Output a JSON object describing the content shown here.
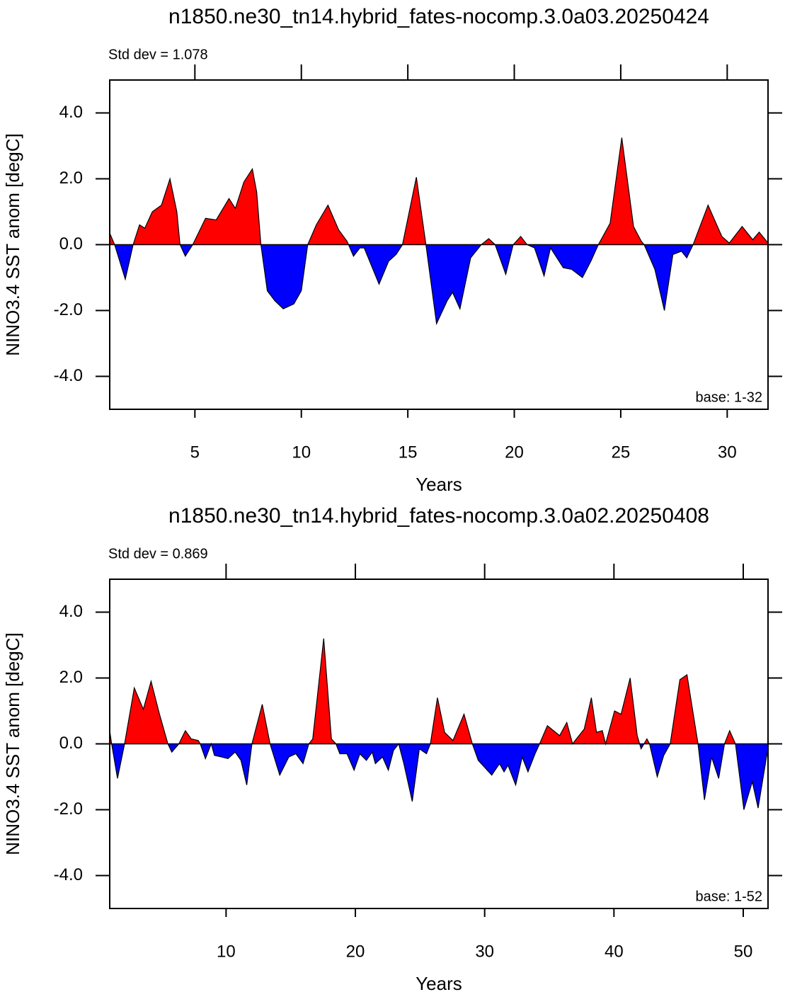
{
  "chart_data": [
    {
      "type": "area",
      "title": "n1850.ne30_tn14.hybrid_fates-nocomp.3.0a03.20250424",
      "subtitle": "Std dev = 1.078",
      "annotation": "base: 1-32",
      "xlabel": "Years",
      "ylabel": "NINO3.4 SST anom [degC]",
      "x": [
        1.0,
        1.23,
        1.73,
        2.1,
        2.4,
        2.65,
        3.0,
        3.43,
        3.83,
        4.15,
        4.3,
        4.55,
        4.9,
        5.5,
        6.0,
        6.6,
        6.9,
        7.3,
        7.7,
        7.9,
        8.1,
        8.4,
        8.75,
        9.15,
        9.65,
        10.0,
        10.3,
        10.7,
        11.25,
        11.75,
        12.15,
        12.45,
        12.75,
        12.95,
        13.65,
        14.1,
        14.45,
        14.75,
        15.4,
        15.85,
        16.35,
        16.85,
        17.1,
        17.45,
        17.95,
        18.45,
        18.8,
        19.1,
        19.6,
        19.95,
        20.3,
        20.6,
        20.95,
        21.4,
        21.7,
        22.3,
        22.7,
        23.2,
        23.6,
        23.95,
        24.5,
        25.05,
        25.6,
        25.97,
        26.1,
        26.6,
        27.05,
        27.45,
        27.85,
        28.1,
        28.4,
        29.1,
        29.75,
        30.1,
        30.7,
        31.2,
        31.5,
        31.92
      ],
      "values": [
        0.35,
        0,
        -1.05,
        0,
        0.6,
        0.5,
        1.0,
        1.2,
        2.0,
        1.0,
        0,
        -0.35,
        0,
        0.8,
        0.75,
        1.4,
        1.1,
        1.9,
        2.3,
        1.6,
        0,
        -1.4,
        -1.7,
        -1.95,
        -1.8,
        -1.4,
        0,
        0.6,
        1.2,
        0.45,
        0.1,
        -0.35,
        -0.1,
        -0.1,
        -1.2,
        -0.5,
        -0.3,
        0,
        2.05,
        0,
        -2.4,
        -1.7,
        -1.45,
        -1.95,
        -0.4,
        0,
        0.18,
        0,
        -0.9,
        0,
        0.25,
        0,
        -0.1,
        -0.95,
        -0.1,
        -0.7,
        -0.75,
        -1.0,
        -0.5,
        0,
        0.65,
        3.25,
        0.55,
        0.1,
        0,
        -0.75,
        -2.0,
        -0.3,
        -0.2,
        -0.4,
        0,
        1.2,
        0.25,
        0.05,
        0.55,
        0.15,
        0.38,
        0.05
      ],
      "xlim": [
        1,
        31.917
      ],
      "ylim": [
        -5,
        5
      ],
      "xticks": [
        5,
        10,
        15,
        20,
        25,
        30
      ],
      "yticks": [
        {
          "value": -4,
          "label": "-4.0"
        },
        {
          "value": -2,
          "label": "-2.0"
        },
        {
          "value": 0,
          "label": "0.0"
        },
        {
          "value": 2,
          "label": "2.0"
        },
        {
          "value": 4,
          "label": "4.0"
        }
      ],
      "positive_color": "#ff0000",
      "negative_color": "#0000ff"
    },
    {
      "type": "area",
      "title": "n1850.ne30_tn14.hybrid_fates-nocomp.3.0a02.20250408",
      "subtitle": "Std dev = 0.869",
      "annotation": "base: 1-52",
      "xlabel": "Years",
      "ylabel": "NINO3.4 SST anom [degC]",
      "x": [
        1.0,
        1.15,
        1.6,
        2.15,
        2.9,
        3.6,
        4.2,
        4.85,
        5.5,
        5.8,
        6.35,
        6.85,
        7.3,
        7.85,
        8.0,
        8.4,
        8.85,
        9.1,
        9.65,
        10.15,
        10.7,
        11.15,
        11.6,
        12.0,
        12.8,
        13.4,
        14.15,
        14.85,
        15.4,
        15.95,
        16.4,
        16.7,
        17.55,
        18.15,
        18.5,
        18.8,
        19.35,
        19.9,
        20.35,
        20.85,
        21.3,
        21.55,
        22.1,
        22.55,
        22.95,
        23.35,
        23.75,
        24.4,
        24.95,
        25.5,
        25.8,
        26.35,
        26.9,
        27.55,
        28.4,
        29.05,
        29.5,
        30.55,
        31.15,
        31.5,
        31.8,
        32.4,
        32.9,
        33.35,
        33.9,
        34.25,
        34.85,
        35.8,
        36.35,
        36.8,
        37.0,
        37.7,
        38.25,
        38.65,
        39.1,
        39.35,
        40.05,
        40.55,
        41.25,
        41.8,
        42.1,
        42.55,
        42.75,
        43.35,
        43.85,
        44.35,
        45.1,
        45.65,
        46.5,
        47.0,
        47.55,
        48.1,
        48.55,
        48.95,
        49.4,
        50.05,
        50.7,
        51.15,
        51.92
      ],
      "values": [
        0.4,
        0,
        -1.05,
        0,
        1.7,
        1.05,
        1.9,
        0.9,
        0,
        -0.25,
        0,
        0.4,
        0.15,
        0.1,
        0,
        -0.45,
        0,
        -0.35,
        -0.4,
        -0.45,
        -0.25,
        -0.5,
        -1.25,
        0,
        1.2,
        0,
        -0.95,
        -0.4,
        -0.3,
        -0.6,
        0,
        0.15,
        3.2,
        0.15,
        0,
        -0.3,
        -0.3,
        -0.8,
        -0.3,
        -0.5,
        -0.25,
        -0.6,
        -0.4,
        -0.8,
        -0.2,
        0,
        -0.6,
        -1.75,
        -0.15,
        -0.3,
        0,
        1.4,
        0.35,
        0.1,
        0.9,
        0,
        -0.5,
        -0.95,
        -0.6,
        -0.85,
        -0.65,
        -1.25,
        -0.4,
        -0.85,
        -0.3,
        0,
        0.55,
        0.25,
        0.65,
        0.0,
        0.1,
        0.45,
        1.4,
        0.35,
        0.4,
        0.0,
        1.0,
        0.9,
        2.0,
        0.25,
        -0.15,
        0.15,
        0,
        -1.0,
        -0.35,
        0,
        1.95,
        2.1,
        0,
        -1.7,
        -0.4,
        -1.05,
        0,
        0.4,
        0,
        -2.0,
        -1.15,
        -1.95,
        -0.1
      ],
      "xlim": [
        1,
        51.917
      ],
      "ylim": [
        -5,
        5
      ],
      "xticks": [
        10,
        20,
        30,
        40,
        50
      ],
      "yticks": [
        {
          "value": -4,
          "label": "-4.0"
        },
        {
          "value": -2,
          "label": "-2.0"
        },
        {
          "value": 0,
          "label": "0.0"
        },
        {
          "value": 2,
          "label": "2.0"
        },
        {
          "value": 4,
          "label": "4.0"
        }
      ],
      "positive_color": "#ff0000",
      "negative_color": "#0000ff"
    }
  ]
}
